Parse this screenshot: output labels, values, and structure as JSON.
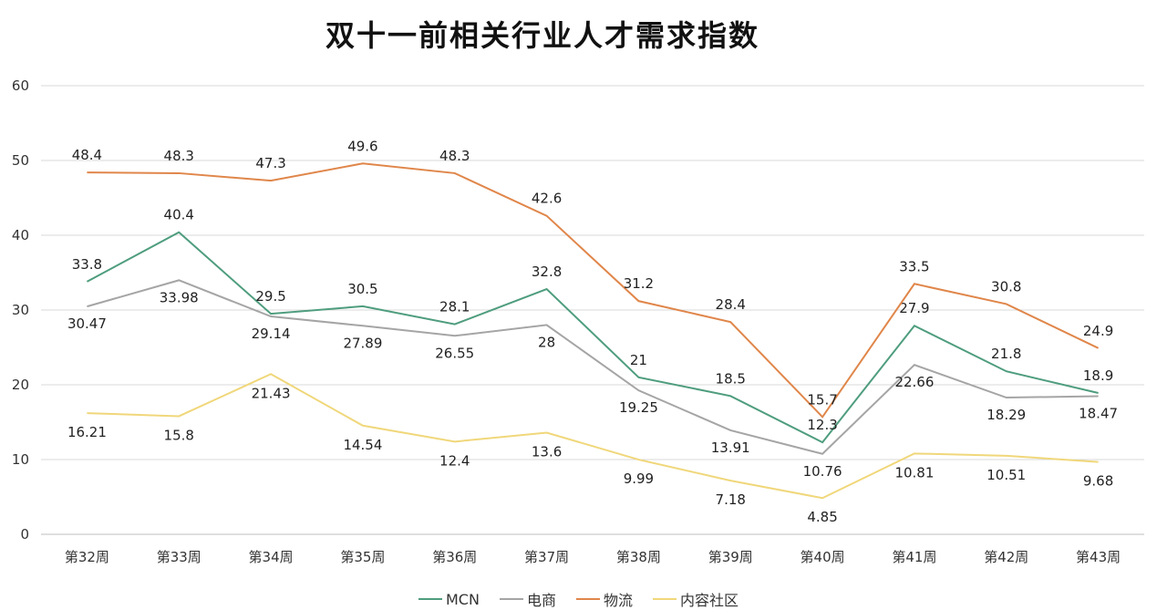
{
  "chart_data": {
    "type": "line",
    "title": "双十一前相关行业人才需求指数",
    "xlabel": "",
    "ylabel": "",
    "ylim": [
      0,
      60
    ],
    "yticks": [
      0,
      10,
      20,
      30,
      40,
      50,
      60
    ],
    "grid": true,
    "legend": "bottom",
    "categories": [
      "第32周",
      "第33周",
      "第34周",
      "第35周",
      "第36周",
      "第37周",
      "第38周",
      "第39周",
      "第40周",
      "第41周",
      "第42周",
      "第43周"
    ],
    "series": [
      {
        "name": "MCN",
        "color": "#4e9d7e",
        "values": [
          33.8,
          40.4,
          29.5,
          30.5,
          28.1,
          32.8,
          21,
          18.5,
          12.3,
          27.9,
          21.8,
          18.9
        ]
      },
      {
        "name": "电商",
        "color": "#a5a5a5",
        "values": [
          30.47,
          33.98,
          29.14,
          27.89,
          26.55,
          28,
          19.25,
          13.91,
          10.76,
          22.66,
          18.29,
          18.47
        ]
      },
      {
        "name": "物流",
        "color": "#e0864a",
        "values": [
          48.4,
          48.3,
          47.3,
          49.6,
          48.3,
          42.6,
          31.2,
          28.4,
          15.7,
          33.5,
          30.8,
          24.9
        ]
      },
      {
        "name": "内容社区",
        "color": "#f0d77a",
        "values": [
          16.21,
          15.8,
          21.43,
          14.54,
          12.4,
          13.6,
          9.99,
          7.18,
          4.85,
          10.81,
          10.51,
          9.68
        ]
      }
    ]
  }
}
